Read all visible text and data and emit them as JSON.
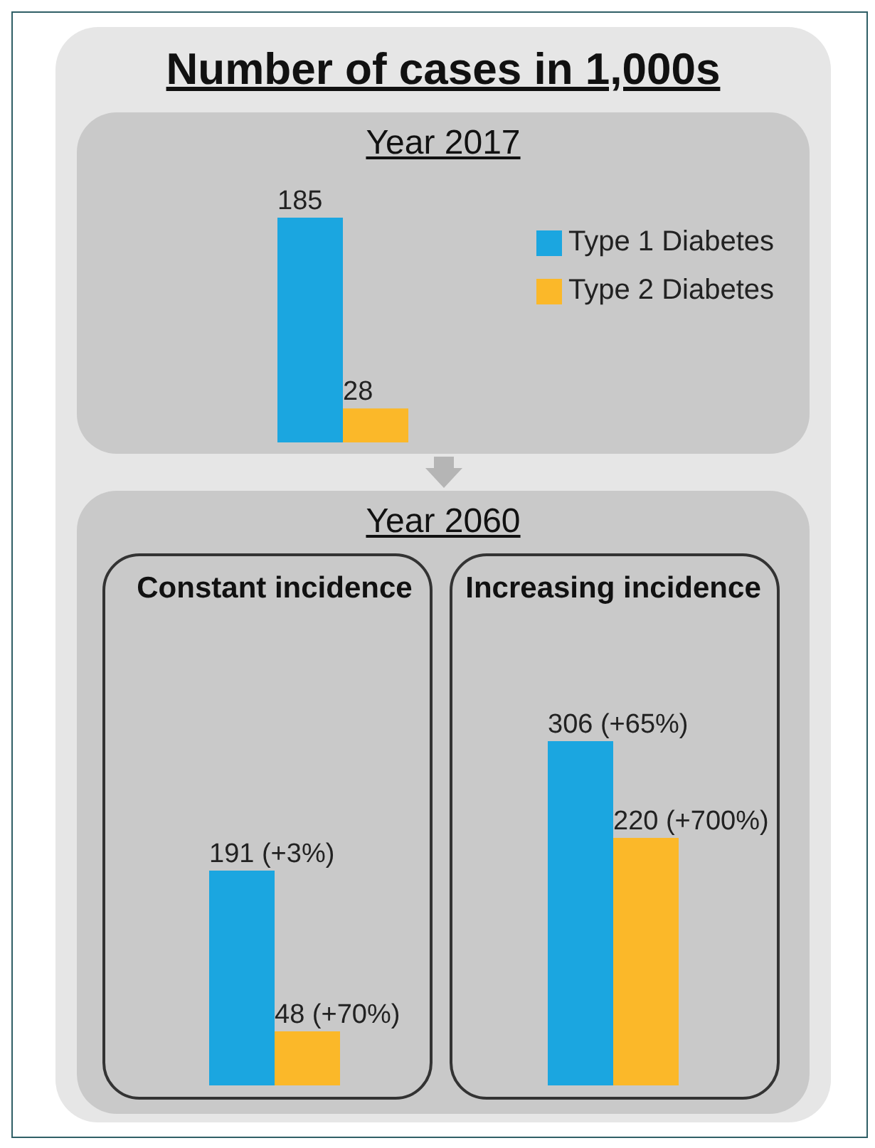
{
  "chart_data": [
    {
      "type": "bar",
      "title": "Number of cases in 1,000s",
      "subtitle": "Year 2017",
      "categories": [
        null
      ],
      "series": [
        {
          "name": "Type 1 Diabetes",
          "color": "#1ba6e0",
          "values": [
            185
          ]
        },
        {
          "name": "Type 2 Diabetes",
          "color": "#fbb829",
          "values": [
            28
          ]
        }
      ],
      "data_labels": true,
      "legend": "top right"
    },
    {
      "type": "bar",
      "title": "Year 2060",
      "categories": [
        "Constant incidence",
        "Increasing incidence"
      ],
      "series": [
        {
          "color": "#1ba6e0",
          "values": [
            191,
            306
          ],
          "value_labels": [
            "191 (+3%)",
            "306 (+65%)"
          ]
        },
        {
          "color": "#fbb829",
          "values": [
            48,
            220
          ],
          "value_labels": [
            "48 (+70%)",
            "220 (+700%)"
          ]
        }
      ]
    }
  ]
}
